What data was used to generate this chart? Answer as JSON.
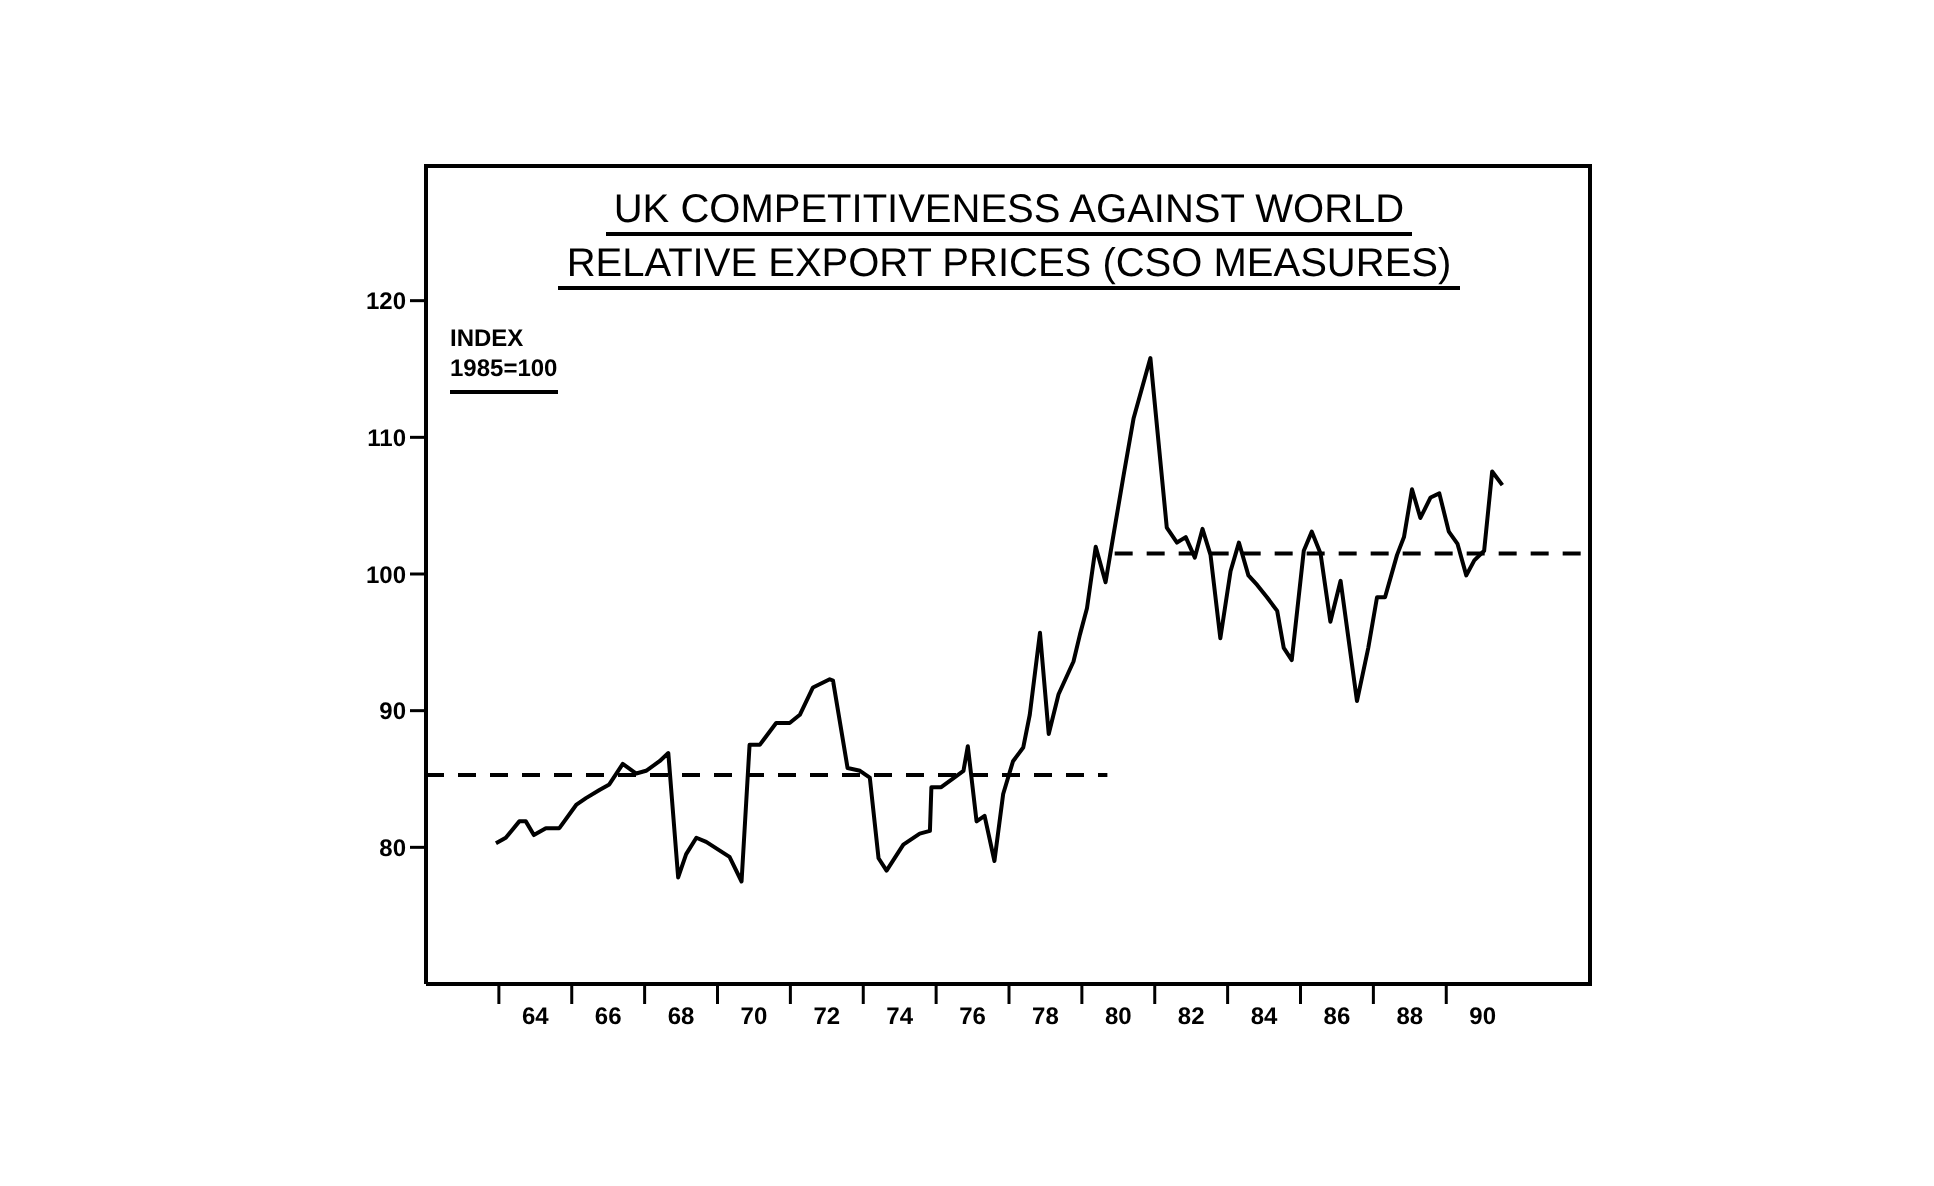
{
  "chart_data": {
    "type": "line",
    "title": "UK COMPETITIVENESS AGAINST WORLD",
    "subtitle": "RELATIVE EXPORT PRICES (CSO MEASURES)",
    "ylabel": "INDEX 1985=100",
    "xlim": [
      61,
      93
    ],
    "xticks": [
      {
        "value": 63,
        "label": null
      },
      64,
      {
        "value": 65,
        "label": null
      },
      66,
      {
        "value": 67,
        "label": null
      },
      68,
      {
        "value": 69,
        "label": null
      },
      70,
      {
        "value": 71,
        "label": null
      },
      72,
      {
        "value": 73,
        "label": null
      },
      74,
      {
        "value": 75,
        "label": null
      },
      76,
      {
        "value": 77,
        "label": null
      },
      78,
      {
        "value": 79,
        "label": null
      },
      80,
      {
        "value": 81,
        "label": null
      },
      82,
      {
        "value": 83,
        "label": null
      },
      84,
      {
        "value": 85,
        "label": null
      },
      86,
      {
        "value": 87,
        "label": null
      },
      88,
      {
        "value": 89,
        "label": null
      },
      90
    ],
    "ylim": [
      70,
      130
    ],
    "yticks": [
      80,
      90,
      100,
      110,
      120
    ],
    "grid": false,
    "legend": false,
    "marker": "none",
    "series": [
      {
        "color": "#000000",
        "line_style": "solid",
        "x": [
          62.92,
          63.19,
          63.56,
          63.74,
          63.96,
          64.29,
          64.66,
          65.12,
          65.39,
          65.76,
          66.03,
          66.4,
          66.77,
          67.04,
          67.41,
          67.65,
          67.92,
          68.14,
          68.42,
          68.69,
          69.33,
          69.66,
          69.88,
          70.16,
          70.61,
          70.98,
          71.26,
          71.62,
          72.08,
          72.17,
          72.57,
          72.91,
          73.18,
          73.42,
          73.64,
          74.1,
          74.55,
          74.83,
          74.87,
          75.14,
          75.75,
          75.87,
          76.11,
          76.33,
          76.6,
          76.84,
          77.11,
          77.39,
          77.57,
          77.85,
          78.09,
          78.36,
          78.77,
          78.95,
          79.14,
          79.38,
          79.65,
          79.87,
          80.15,
          80.42,
          80.88,
          81.33,
          81.61,
          81.85,
          82.1,
          82.31,
          82.53,
          82.8,
          83.08,
          83.31,
          83.57,
          83.81,
          84.08,
          84.36,
          84.54,
          84.76,
          85.09,
          85.31,
          85.55,
          85.82,
          86.1,
          86.55,
          86.86,
          87.1,
          87.32,
          87.65,
          87.84,
          88.06,
          88.29,
          88.57,
          88.81,
          89.07,
          89.31,
          89.55,
          89.77,
          90.04,
          90.26,
          90.54
        ],
        "values": [
          80.3,
          80.7,
          81.9,
          81.9,
          80.9,
          81.4,
          81.4,
          83.1,
          83.6,
          84.2,
          84.6,
          86.1,
          85.4,
          85.6,
          86.3,
          86.9,
          77.8,
          79.5,
          80.7,
          80.4,
          79.3,
          77.5,
          87.5,
          87.5,
          89.1,
          89.1,
          89.7,
          91.7,
          92.3,
          92.2,
          85.8,
          85.6,
          85.1,
          79.2,
          78.3,
          80.2,
          81.0,
          81.2,
          84.4,
          84.4,
          85.6,
          87.4,
          81.9,
          82.3,
          79.0,
          83.9,
          86.3,
          87.3,
          89.7,
          95.7,
          88.3,
          91.2,
          93.6,
          95.6,
          97.5,
          102.0,
          99.4,
          102.9,
          107.3,
          111.4,
          115.8,
          103.4,
          102.3,
          102.7,
          101.2,
          103.3,
          101.4,
          95.3,
          100.2,
          102.3,
          99.9,
          99.2,
          98.3,
          97.3,
          94.6,
          93.7,
          101.7,
          103.1,
          101.5,
          96.5,
          99.5,
          90.7,
          94.6,
          98.3,
          98.3,
          101.4,
          102.7,
          106.2,
          104.1,
          105.6,
          105.9,
          103.1,
          102.2,
          99.9,
          101.0,
          101.7,
          107.5,
          106.5
        ]
      },
      {
        "color": "#000000",
        "line_style": "dashed",
        "x": [
          61,
          79.7
        ],
        "values": [
          85.3,
          85.3
        ]
      },
      {
        "color": "#000000",
        "line_style": "dashed",
        "x": [
          79.9,
          93
        ],
        "values": [
          101.5,
          101.5
        ]
      }
    ]
  }
}
